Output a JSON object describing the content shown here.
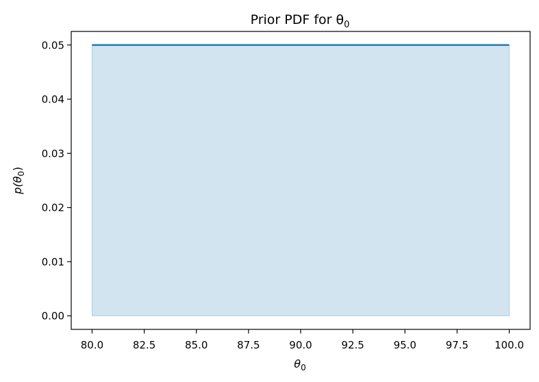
{
  "chart_data": {
    "type": "area",
    "title": "Prior PDF for θ",
    "title_sub": "0",
    "xlabel_main": "θ",
    "xlabel_sub": "0",
    "ylabel_pre": "p(θ",
    "ylabel_sub": "0",
    "ylabel_post": ")",
    "x": [
      80.0,
      100.0
    ],
    "y": [
      0.05,
      0.05
    ],
    "xlim": [
      79.0,
      101.0
    ],
    "ylim": [
      -0.0025,
      0.0525
    ],
    "xticks": [
      80.0,
      82.5,
      85.0,
      87.5,
      90.0,
      92.5,
      95.0,
      97.5,
      100.0
    ],
    "xtick_labels": [
      "80.0",
      "82.5",
      "85.0",
      "87.5",
      "90.0",
      "92.5",
      "95.0",
      "97.5",
      "100.0"
    ],
    "yticks": [
      0.0,
      0.01,
      0.02,
      0.03,
      0.04,
      0.05
    ],
    "ytick_labels": [
      "0.00",
      "0.01",
      "0.02",
      "0.03",
      "0.04",
      "0.05"
    ],
    "grid": false,
    "line_color": "#1f77b4",
    "fill_color": "#1f77b4",
    "fill_alpha": 0.2
  }
}
